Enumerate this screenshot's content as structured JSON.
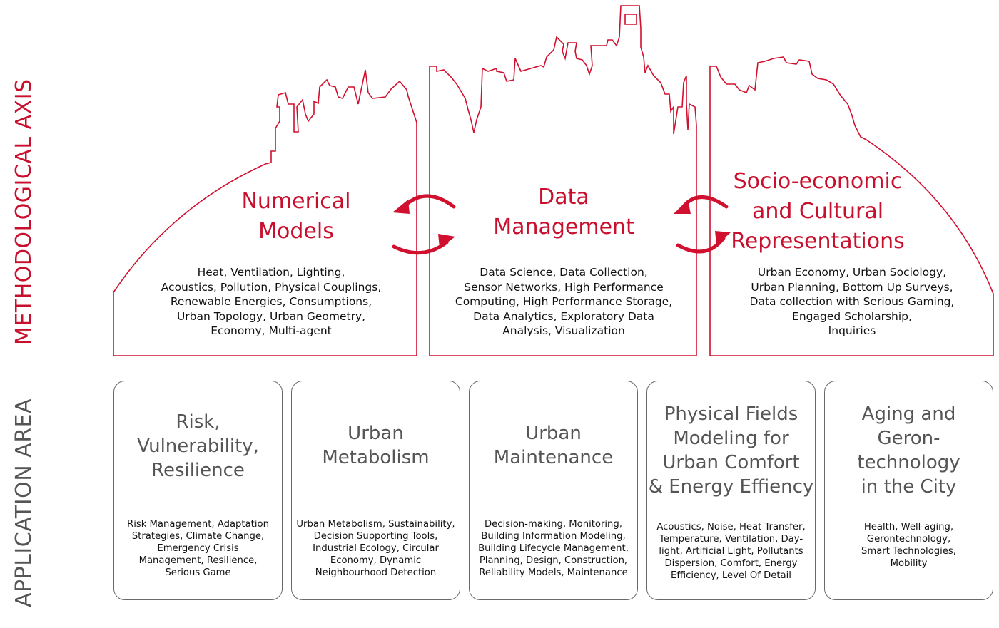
{
  "axes": {
    "methodological": "METHODOLOGICAL AXIS",
    "application": "APPLICATION AREA"
  },
  "colors": {
    "accent": "#c8102e",
    "box_border": "#6a6a6a",
    "app_title": "#555555"
  },
  "methods": [
    {
      "title": [
        "Numerical",
        "Models"
      ],
      "items": [
        "Heat, Ventilation, Lighting,",
        "Acoustics, Pollution, Physical Couplings,",
        "Renewable Energies, Consumptions,",
        "Urban Topology, Urban Geometry,",
        "Economy, Multi-agent"
      ]
    },
    {
      "title": [
        "Data",
        "Management"
      ],
      "items": [
        "Data Science, Data Collection,",
        "Sensor Networks, High Performance",
        "Computing, High Performance Storage,",
        "Data Analytics, Exploratory Data",
        "Analysis, Visualization"
      ]
    },
    {
      "title": [
        "Socio-economic",
        "and Cultural",
        "Representations"
      ],
      "items": [
        "Urban Economy, Urban Sociology,",
        "Urban Planning, Bottom Up Surveys,",
        "Data collection with Serious Gaming,",
        "Engaged Scholarship,",
        "Inquiries"
      ]
    }
  ],
  "applications": [
    {
      "title": [
        "Risk,",
        "Vulnerability,",
        "Resilience"
      ],
      "items": [
        "Risk Management,  Adaptation",
        "Strategies, Climate Change,",
        "Emergency Crisis",
        "Management, Resilience,",
        "Serious Game"
      ]
    },
    {
      "title": [
        "Urban",
        "Metabolism"
      ],
      "items": [
        "Urban Metabolism, Sustainability,",
        "Decision Supporting Tools,",
        "Industrial Ecology, Circular",
        "Economy, Dynamic",
        "Neighbourhood Detection"
      ]
    },
    {
      "title": [
        "Urban",
        "Maintenance"
      ],
      "items": [
        "Decision-making, Monitoring,",
        "Building Information Modeling,",
        "Building Lifecycle Management,",
        "Planning, Design, Construction,",
        "Reliability Models, Maintenance"
      ]
    },
    {
      "title": [
        "Physical Fields",
        "Modeling for",
        "Urban Comfort",
        "& Energy Effiency"
      ],
      "items": [
        "Acoustics, Noise, Heat Transfer,",
        "Temperature, Ventilation, Day-",
        "light, Artificial Light, Pollutants",
        "Dispersion, Comfort, Energy",
        "Efficiency, Level Of Detail"
      ]
    },
    {
      "title": [
        "Aging and",
        "Geron-",
        "technology",
        "in the City"
      ],
      "items": [
        "Health, Well-aging,",
        "Gerontechnology,",
        "Smart Technologies,",
        "Mobility"
      ]
    }
  ]
}
